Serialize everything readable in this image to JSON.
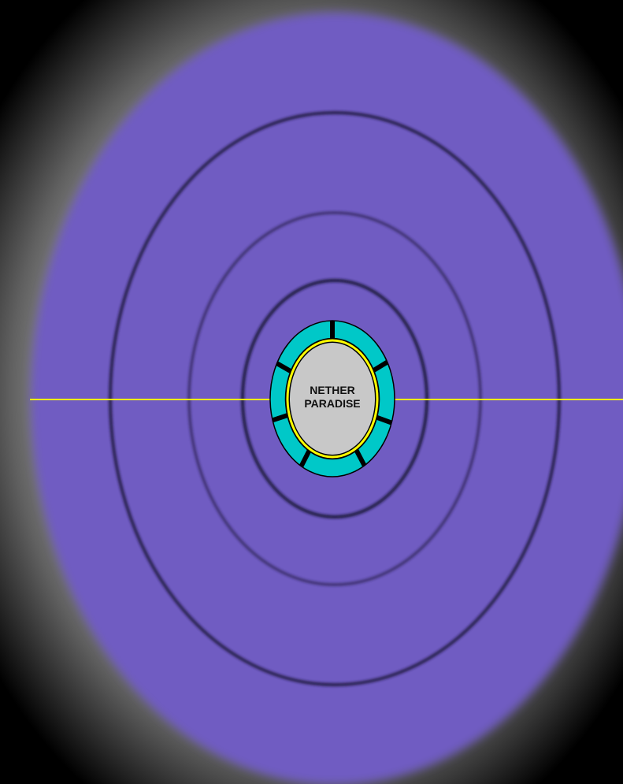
{
  "center_label": {
    "line1": "NETHER",
    "line2": "PARADISE"
  },
  "colors": {
    "background_dark": "#000000",
    "halo_light": "#b0b0b0",
    "field": "#705cc2",
    "orbit_ring": "#1a1838",
    "equator_line": "#ffff00",
    "outer_band": "#00c8c8",
    "core": "#c8c8c8",
    "core_ring": "#ffff00",
    "segment_marks": "#000000"
  },
  "diagram": {
    "orbit_count": 3,
    "segment_count": 7,
    "equator_line": true
  }
}
